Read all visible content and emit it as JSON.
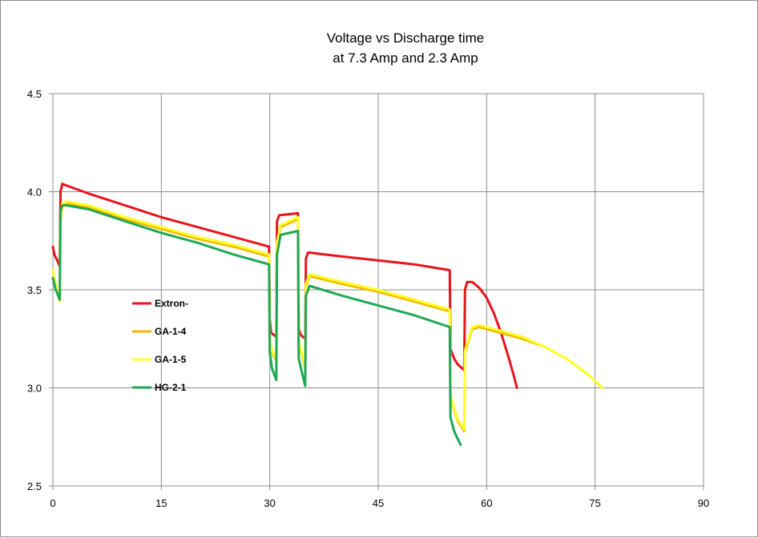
{
  "chart_data": {
    "type": "line",
    "title_lines": [
      "Voltage vs Discharge time",
      "at 7.3 Amp and 2.3 Amp"
    ],
    "xlabel": "",
    "ylabel": "",
    "xlim": [
      0,
      90
    ],
    "ylim": [
      2.5,
      4.5
    ],
    "x_ticks": [
      0,
      15,
      30,
      45,
      60,
      75,
      90
    ],
    "y_ticks": [
      2.5,
      3.0,
      3.5,
      4.0,
      4.5
    ],
    "x_tick_labels": [
      "0",
      "15",
      "30",
      "45",
      "60",
      "75",
      "90"
    ],
    "y_tick_labels": [
      "2.5",
      "3.0",
      "3.5",
      "4.0",
      "4.5"
    ],
    "grid": true,
    "legend_position": "left-inside",
    "series": [
      {
        "name": "Extron-",
        "color": "#e8141c",
        "points": [
          [
            0,
            3.72
          ],
          [
            0.2,
            3.68
          ],
          [
            0.6,
            3.65
          ],
          [
            0.95,
            3.62
          ],
          [
            1.05,
            4.0
          ],
          [
            1.3,
            4.04
          ],
          [
            2,
            4.03
          ],
          [
            5,
            3.99
          ],
          [
            10,
            3.93
          ],
          [
            15,
            3.87
          ],
          [
            20,
            3.82
          ],
          [
            25,
            3.77
          ],
          [
            29.9,
            3.72
          ],
          [
            30,
            3.35
          ],
          [
            30.2,
            3.28
          ],
          [
            30.9,
            3.26
          ],
          [
            31,
            3.85
          ],
          [
            31.3,
            3.88
          ],
          [
            33.9,
            3.89
          ],
          [
            34,
            3.3
          ],
          [
            34.3,
            3.27
          ],
          [
            34.9,
            3.25
          ],
          [
            35,
            3.66
          ],
          [
            35.3,
            3.69
          ],
          [
            40,
            3.67
          ],
          [
            45,
            3.65
          ],
          [
            50,
            3.63
          ],
          [
            54.9,
            3.6
          ],
          [
            55,
            3.2
          ],
          [
            55.5,
            3.15
          ],
          [
            56,
            3.12
          ],
          [
            56.9,
            3.09
          ],
          [
            57,
            3.5
          ],
          [
            57.3,
            3.54
          ],
          [
            58,
            3.54
          ],
          [
            59,
            3.51
          ],
          [
            60,
            3.46
          ],
          [
            61,
            3.38
          ],
          [
            62,
            3.28
          ],
          [
            63,
            3.16
          ],
          [
            63.7,
            3.07
          ],
          [
            64.2,
            3.0
          ]
        ]
      },
      {
        "name": "GA-1-4",
        "color": "#f5b800",
        "points": [
          [
            0,
            3.6
          ],
          [
            0.4,
            3.52
          ],
          [
            0.95,
            3.44
          ],
          [
            1.05,
            3.85
          ],
          [
            1.3,
            3.93
          ],
          [
            2,
            3.94
          ],
          [
            5,
            3.92
          ],
          [
            10,
            3.86
          ],
          [
            15,
            3.81
          ],
          [
            20,
            3.76
          ],
          [
            25,
            3.72
          ],
          [
            29.9,
            3.67
          ],
          [
            30,
            3.25
          ],
          [
            30.3,
            3.18
          ],
          [
            30.9,
            3.14
          ],
          [
            31,
            3.72
          ],
          [
            31.5,
            3.82
          ],
          [
            33.9,
            3.86
          ],
          [
            34,
            3.23
          ],
          [
            34.5,
            3.16
          ],
          [
            34.9,
            3.1
          ],
          [
            35,
            3.52
          ],
          [
            35.5,
            3.57
          ],
          [
            40,
            3.53
          ],
          [
            45,
            3.49
          ],
          [
            50,
            3.44
          ],
          [
            54.9,
            3.39
          ],
          [
            55,
            2.95
          ],
          [
            56,
            2.83
          ],
          [
            56.9,
            2.78
          ],
          [
            57,
            3.18
          ],
          [
            58,
            3.3
          ],
          [
            59,
            3.31
          ],
          [
            62,
            3.28
          ],
          [
            65,
            3.25
          ],
          [
            68,
            3.21
          ],
          [
            71,
            3.15
          ],
          [
            74,
            3.07
          ],
          [
            76,
            3.0
          ]
        ]
      },
      {
        "name": "GA-1-5",
        "color": "#ffff2b",
        "points": [
          [
            0,
            3.6
          ],
          [
            0.4,
            3.52
          ],
          [
            0.95,
            3.44
          ],
          [
            1.05,
            3.86
          ],
          [
            1.3,
            3.94
          ],
          [
            2,
            3.95
          ],
          [
            5,
            3.93
          ],
          [
            10,
            3.87
          ],
          [
            15,
            3.82
          ],
          [
            20,
            3.77
          ],
          [
            25,
            3.73
          ],
          [
            29.9,
            3.68
          ],
          [
            30,
            3.26
          ],
          [
            30.3,
            3.19
          ],
          [
            30.9,
            3.15
          ],
          [
            31,
            3.74
          ],
          [
            31.5,
            3.83
          ],
          [
            33.9,
            3.87
          ],
          [
            34,
            3.24
          ],
          [
            34.5,
            3.17
          ],
          [
            34.9,
            3.11
          ],
          [
            35,
            3.53
          ],
          [
            35.5,
            3.58
          ],
          [
            40,
            3.54
          ],
          [
            45,
            3.5
          ],
          [
            50,
            3.45
          ],
          [
            54.9,
            3.4
          ],
          [
            55,
            2.96
          ],
          [
            56,
            2.84
          ],
          [
            56.9,
            2.79
          ],
          [
            57,
            3.19
          ],
          [
            58,
            3.31
          ],
          [
            59,
            3.32
          ],
          [
            62,
            3.29
          ],
          [
            65,
            3.26
          ],
          [
            68,
            3.21
          ],
          [
            71,
            3.15
          ],
          [
            74,
            3.07
          ],
          [
            76,
            3.0
          ]
        ]
      },
      {
        "name": "HG-2-1",
        "color": "#1ea854",
        "points": [
          [
            0,
            3.56
          ],
          [
            0.4,
            3.5
          ],
          [
            0.95,
            3.45
          ],
          [
            1.05,
            3.9
          ],
          [
            1.3,
            3.93
          ],
          [
            2,
            3.93
          ],
          [
            5,
            3.91
          ],
          [
            10,
            3.85
          ],
          [
            15,
            3.79
          ],
          [
            20,
            3.74
          ],
          [
            25,
            3.68
          ],
          [
            29.9,
            3.63
          ],
          [
            30,
            3.18
          ],
          [
            30.3,
            3.1
          ],
          [
            30.9,
            3.04
          ],
          [
            31,
            3.68
          ],
          [
            31.5,
            3.78
          ],
          [
            33.9,
            3.8
          ],
          [
            34,
            3.15
          ],
          [
            34.5,
            3.07
          ],
          [
            34.9,
            3.01
          ],
          [
            35,
            3.47
          ],
          [
            35.5,
            3.52
          ],
          [
            40,
            3.47
          ],
          [
            45,
            3.42
          ],
          [
            50,
            3.37
          ],
          [
            54.9,
            3.31
          ],
          [
            55,
            2.85
          ],
          [
            55.5,
            2.78
          ],
          [
            56,
            2.74
          ],
          [
            56.4,
            2.71
          ]
        ]
      }
    ]
  }
}
